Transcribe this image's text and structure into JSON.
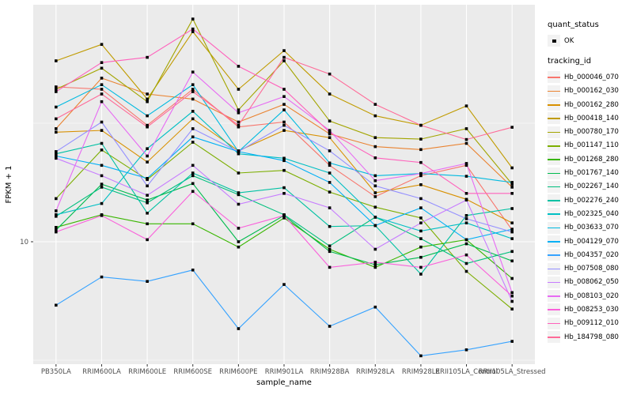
{
  "accent_colors": {
    "panel_bg": "#ebebeb",
    "grid": "#ffffff",
    "tick_text": "#4d4d4d",
    "point": "#000000"
  },
  "legend": {
    "quant_title": "quant_status",
    "quant_items": [
      {
        "label": "OK",
        "marker": "black-square-point"
      }
    ],
    "tracking_title": "tracking_id"
  },
  "chart_data": {
    "type": "line",
    "title": "",
    "xlabel": "sample_name",
    "ylabel": "FPKM + 1",
    "yscale": "log10",
    "ytick_labels": [
      "10"
    ],
    "ylim": [
      3,
      100
    ],
    "grid": "ggplot-grey-panel-white-gridlines",
    "legend_position": "right",
    "categories": [
      "PB350LA",
      "RRIM600LA",
      "RRIM600LE",
      "RRIM600SE",
      "RRIM600PE",
      "RRIM901LA",
      "RRIM928BA",
      "RRIM928LA",
      "RRIM928LE",
      "RRII105LA_Control",
      "RRII105LA_Stressed"
    ],
    "series": [
      {
        "name": "Hb_000046_070",
        "color": "#F8766D",
        "values": [
          45,
          44,
          31,
          44,
          30.5,
          32,
          21,
          15.5,
          19,
          21,
          11.2
        ]
      },
      {
        "name": "Hb_000162_030",
        "color": "#EA8331",
        "values": [
          30,
          49,
          42,
          40,
          32,
          38,
          28.5,
          25.2,
          24.5,
          26,
          17
        ]
      },
      {
        "name": "Hb_000162_280",
        "color": "#D89000",
        "values": [
          29,
          29.5,
          21.7,
          33,
          24.2,
          29.5,
          27.5,
          16.1,
          17.4,
          15.1,
          12
        ]
      },
      {
        "name": "Hb_000418_140",
        "color": "#C09B00",
        "values": [
          58,
          68,
          40,
          77,
          44,
          64,
          42,
          34,
          31,
          37.4,
          20.5
        ]
      },
      {
        "name": "Hb_000780_170",
        "color": "#A3A500",
        "values": [
          44,
          54,
          39,
          87,
          36,
          58,
          32.3,
          27.5,
          27.1,
          30,
          17.5
        ]
      },
      {
        "name": "Hb_001147_110",
        "color": "#7CAE00",
        "values": [
          15.2,
          24.4,
          18.3,
          26.3,
          19.5,
          20,
          16.2,
          14,
          12.6,
          7.5,
          5.2
        ]
      },
      {
        "name": "Hb_001268_280",
        "color": "#39B600",
        "values": [
          11.5,
          13,
          11.9,
          11.9,
          9.5,
          12.6,
          9.3,
          7.8,
          9.5,
          10.2,
          7
        ]
      },
      {
        "name": "Hb_001767_140",
        "color": "#00BB4E",
        "values": [
          11.2,
          17.5,
          15,
          17.6,
          10,
          12.9,
          9.1,
          8,
          8.6,
          9.8,
          8.3
        ]
      },
      {
        "name": "Hb_002267_140",
        "color": "#00BF7D",
        "values": [
          12.8,
          17,
          14.6,
          19,
          15.8,
          13,
          9.6,
          12.7,
          10.3,
          8.1,
          9.1
        ]
      },
      {
        "name": "Hb_002276_240",
        "color": "#00C1A3",
        "values": [
          23.5,
          26,
          13.2,
          19.5,
          16.1,
          16.9,
          11.6,
          11.7,
          7.3,
          12.9,
          13.8
        ]
      },
      {
        "name": "Hb_002325_040",
        "color": "#00BFC4",
        "values": [
          13,
          14.5,
          24.7,
          35.5,
          23.5,
          22.5,
          19.5,
          12.7,
          11.1,
          12,
          10.3
        ]
      },
      {
        "name": "Hb_003633_070",
        "color": "#00BAE0",
        "values": [
          37,
          46,
          34,
          46,
          24,
          36,
          21.5,
          19,
          19.4,
          18.9,
          17.8
        ]
      },
      {
        "name": "Hb_004129_070",
        "color": "#00B0F6",
        "values": [
          23,
          21,
          18.5,
          27.7,
          24,
          22,
          17.8,
          11.7,
          13.9,
          10.2,
          11.3
        ]
      },
      {
        "name": "Hb_004357_020",
        "color": "#35A2FF",
        "values": [
          5.4,
          7.1,
          6.8,
          7.6,
          4.3,
          6.6,
          4.4,
          5.3,
          3.3,
          3.5,
          3.8
        ]
      },
      {
        "name": "Hb_007508_080",
        "color": "#9590FF",
        "values": [
          24,
          32,
          17.2,
          30,
          24,
          31,
          24.2,
          17.2,
          15.2,
          12.5,
          11
        ]
      },
      {
        "name": "Hb_008062_050",
        "color": "#C77CFF",
        "values": [
          22.5,
          19,
          15.7,
          21,
          14.4,
          16,
          13.9,
          9.3,
          12,
          15,
          5.6
        ]
      },
      {
        "name": "Hb_008103_020",
        "color": "#E76BF3",
        "values": [
          13.5,
          39,
          23,
          52,
          35,
          41,
          29.5,
          18.1,
          19.4,
          21.4,
          6.1
        ]
      },
      {
        "name": "Hb_008253_030",
        "color": "#FA62DB",
        "values": [
          11,
          12.9,
          10.2,
          16.3,
          11.4,
          12.9,
          7.8,
          8.2,
          7.8,
          8.8,
          5.9
        ]
      },
      {
        "name": "Hb_009112_010",
        "color": "#FF62BC",
        "values": [
          43,
          57,
          60,
          79,
          55,
          44,
          29,
          22.6,
          21.6,
          16,
          16
        ]
      },
      {
        "name": "Hb_184798_080",
        "color": "#FF6A98",
        "values": [
          33,
          42,
          30.5,
          43,
          31,
          60,
          51,
          38,
          31,
          27,
          30.4
        ]
      }
    ]
  }
}
